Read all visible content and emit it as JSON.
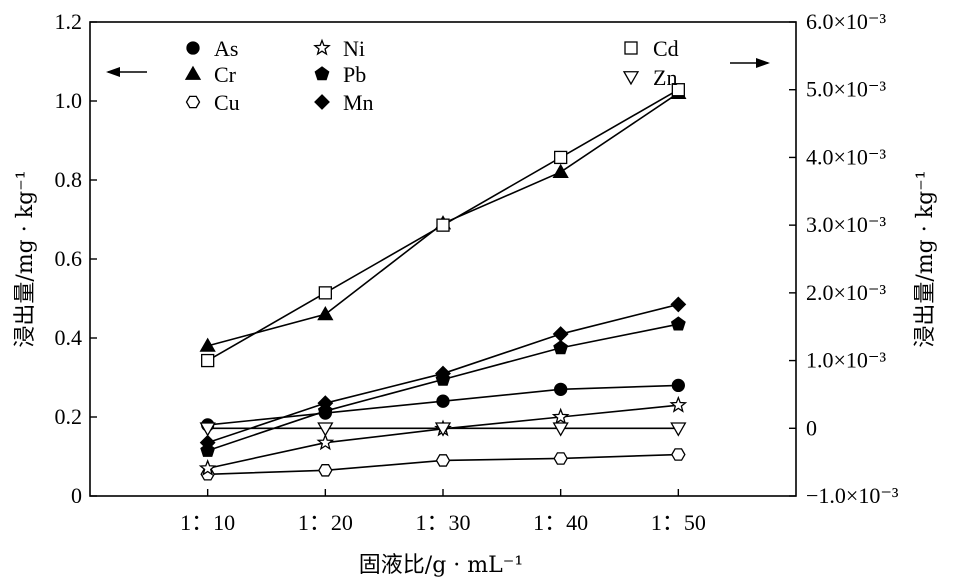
{
  "chart_data": {
    "type": "line",
    "categories": [
      "1：10",
      "1：20",
      "1：30",
      "1：40",
      "1：50"
    ],
    "xlabel": "固液比/g · mL⁻¹",
    "ylabel_left": "浸出量/mg · kg⁻¹",
    "ylabel_right": "浸出量/mg · kg⁻¹",
    "ylim_left": [
      0,
      1.2
    ],
    "ylim_right": [
      -0.001,
      0.006
    ],
    "yticks_left": [
      "0",
      "0.2",
      "0.4",
      "0.6",
      "0.8",
      "1.0",
      "1.2"
    ],
    "yticks_right": [
      "−1.0×10⁻³",
      "0",
      "1.0×10⁻³",
      "2.0×10⁻³",
      "3.0×10⁻³",
      "4.0×10⁻³",
      "5.0×10⁻³",
      "6.0×10⁻³"
    ],
    "grid": false,
    "legend_placement": "top",
    "series": [
      {
        "name": "As",
        "marker": "circle",
        "axis": "left",
        "values": [
          0.18,
          0.21,
          0.24,
          0.27,
          0.28
        ]
      },
      {
        "name": "Cr",
        "marker": "triangle-up",
        "axis": "left",
        "values": [
          0.38,
          0.46,
          0.69,
          0.82,
          1.02
        ]
      },
      {
        "name": "Cu",
        "marker": "hexagon-open",
        "axis": "left",
        "values": [
          0.055,
          0.065,
          0.09,
          0.095,
          0.105
        ]
      },
      {
        "name": "Ni",
        "marker": "star-open",
        "axis": "left",
        "values": [
          0.07,
          0.135,
          0.17,
          0.2,
          0.23
        ]
      },
      {
        "name": "Pb",
        "marker": "pentagon",
        "axis": "left",
        "values": [
          0.115,
          0.215,
          0.295,
          0.375,
          0.435
        ]
      },
      {
        "name": "Mn",
        "marker": "diamond",
        "axis": "left",
        "values": [
          0.135,
          0.235,
          0.31,
          0.41,
          0.485
        ]
      },
      {
        "name": "Cd",
        "marker": "square-open",
        "axis": "right",
        "values": [
          0.001,
          0.002,
          0.003,
          0.004,
          0.005
        ]
      },
      {
        "name": "Zn",
        "marker": "triangle-down-open",
        "axis": "right",
        "values": [
          0,
          0,
          0,
          0,
          0
        ]
      }
    ],
    "legend_left": [
      "As",
      "Cr",
      "Cu",
      "Ni",
      "Pb",
      "Mn"
    ],
    "legend_right": [
      "Cd",
      "Zn"
    ],
    "axis_arrows": [
      {
        "direction": "left",
        "axis": "left"
      },
      {
        "direction": "right",
        "axis": "right"
      }
    ]
  }
}
